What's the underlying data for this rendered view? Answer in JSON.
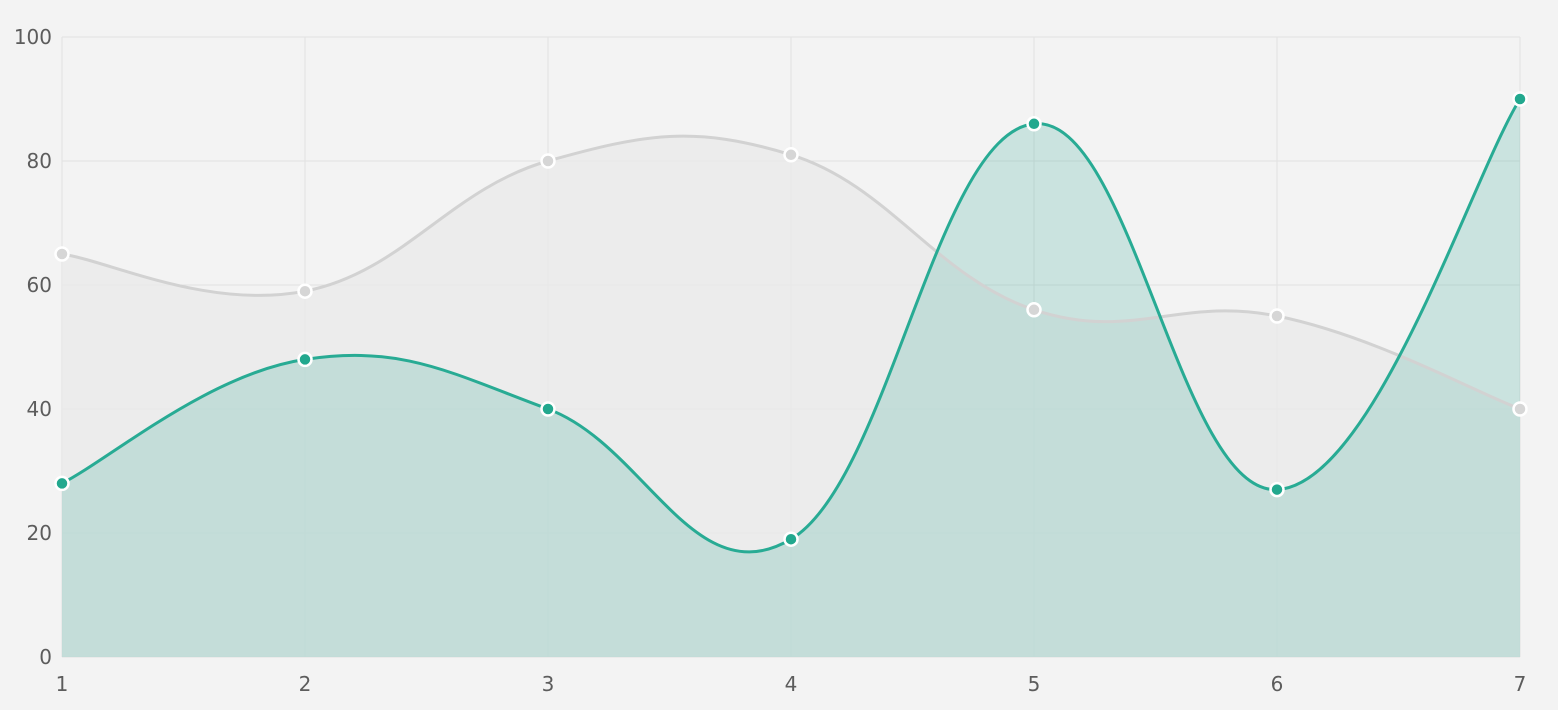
{
  "chart_data": {
    "type": "area",
    "x": [
      1,
      2,
      3,
      4,
      5,
      6,
      7
    ],
    "xlim": [
      1,
      7
    ],
    "ylim": [
      0,
      100
    ],
    "y_ticks": [
      0,
      20,
      40,
      60,
      80,
      100
    ],
    "x_ticks": [
      1,
      2,
      3,
      4,
      5,
      6,
      7
    ],
    "grid": true,
    "legend": "none",
    "series": [
      {
        "values": [
          65,
          59,
          80,
          81,
          56,
          55,
          40
        ],
        "line_color": "#d2d2d2",
        "fill_color": "#e9e9e9",
        "point_color": "#d6d6d6"
      },
      {
        "values": [
          28,
          48,
          40,
          19,
          86,
          27,
          90
        ],
        "line_color": "#28ab94",
        "fill_color": "#26a68f",
        "point_color": "#22a88e"
      }
    ]
  }
}
